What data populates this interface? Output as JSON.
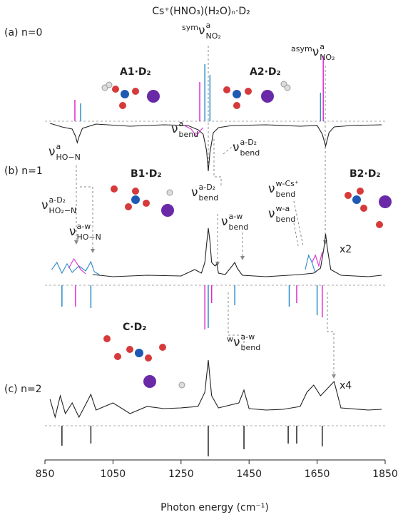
{
  "chart_data": {
    "type": "spectrum",
    "title": "Cs⁺(HNO₃)(H₂O)ₙ·D₂",
    "xlabel": "Photon energy (cm⁻¹)",
    "xlim": [
      850,
      1850
    ],
    "xticks": [
      850,
      1050,
      1250,
      1450,
      1650,
      1850
    ],
    "panels": [
      {
        "label": "(a) n=0",
        "molecules": [
          {
            "name": "A1·D₂",
            "color": "#2e8bc8"
          },
          {
            "name": "A2·D₂",
            "color": "#e02ad0"
          }
        ],
        "traces": [
          {
            "color": "#222222",
            "x": [
              865,
              900,
              930,
              940,
              945,
              950,
              960,
              1000,
              1100,
              1200,
              1270,
              1300,
              1315,
              1325,
              1330,
              1335,
              1345,
              1360,
              1400,
              1500,
              1600,
              1650,
              1665,
              1675,
              1685,
              1700,
              1750,
              1840
            ],
            "values": [
              0.3,
              -0.2,
              -0.5,
              -1.5,
              -2.4,
              -1.6,
              -0.4,
              0.2,
              -0.1,
              0.1,
              0,
              -0.6,
              -1.2,
              -3.5,
              -6.4,
              -3.8,
              -1.0,
              -0.3,
              0,
              0.1,
              -0.1,
              0,
              -1.2,
              -2.9,
              -1.0,
              -0.2,
              0,
              0.1
            ]
          },
          {
            "color": "#e02ad0",
            "x": [
              1260,
              1280,
              1295,
              1305,
              1315
            ],
            "values": [
              0,
              -0.5,
              -1.5,
              -0.8,
              -0.3
            ]
          }
        ],
        "sticks": [
          {
            "color": "#e02ad0",
            "x": [
              938,
              1305,
              1668
            ],
            "values": [
              3.0,
              5.5,
              9.2
            ]
          },
          {
            "color": "#2e8bc8",
            "x": [
              955,
              1320,
              1335,
              1660
            ],
            "values": [
              2.5,
              8.0,
              6.5,
              4.0
            ]
          }
        ],
        "annotations": [
          {
            "pre": "sym",
            "base": "ν",
            "sup": "a",
            "sub": "NO₂"
          },
          {
            "pre": "asym",
            "base": "ν",
            "sup": "a",
            "sub": "NO₂"
          },
          {
            "base": "ν",
            "sup": "a",
            "sub": "HO−N"
          },
          {
            "base": "ν",
            "sup": "a",
            "sub": "bend"
          },
          {
            "base": "ν",
            "sup": "a-D₂",
            "sub": "bend"
          }
        ]
      },
      {
        "label": "(b) n=1",
        "molecules": [
          {
            "name": "B1·D₂",
            "color": "#2e8bc8"
          },
          {
            "name": "B2·D₂",
            "color": "#e02ad0"
          }
        ],
        "traces": [
          {
            "color": "#222222",
            "x": [
              990,
              1050,
              1150,
              1250,
              1290,
              1310,
              1320,
              1325,
              1330,
              1335,
              1340,
              1350,
              1355,
              1360,
              1380,
              1400,
              1408,
              1415,
              1430,
              1500,
              1600,
              1640,
              1660,
              1670,
              1675,
              1680,
              1690,
              1720,
              1800,
              1840
            ],
            "values": [
              0.3,
              0,
              0.2,
              0.1,
              1.0,
              0.5,
              2.0,
              4.5,
              6.8,
              5.0,
              2.0,
              1.5,
              1.8,
              0.5,
              0.3,
              1.5,
              2.0,
              1.2,
              0.2,
              0,
              0.3,
              0.5,
              1.2,
              4.0,
              6.0,
              4.0,
              1.0,
              0.2,
              0,
              0.2
            ]
          },
          {
            "color": "#2e8bc8",
            "x": [
              870,
              885,
              900,
              915,
              930,
              950,
              970,
              985,
              995,
              1010
            ],
            "values": [
              1.0,
              2.0,
              0.5,
              1.8,
              0.6,
              1.5,
              0.8,
              2.1,
              0.7,
              0.3
            ]
          },
          {
            "color": "#e02ad0",
            "x": [
              920,
              935,
              945,
              955,
              970
            ],
            "values": [
              1.2,
              2.5,
              1.8,
              1.0,
              0.4
            ]
          },
          {
            "color": "#2e8bc8",
            "x": [
              1615,
              1625,
              1635,
              1645
            ],
            "values": [
              1.0,
              3.0,
              2.0,
              0.5
            ]
          },
          {
            "color": "#e02ad0",
            "x": [
              1635,
              1645,
              1655,
              1665
            ],
            "values": [
              2.0,
              3.0,
              1.5,
              3.5
            ]
          }
        ],
        "sticks": [
          {
            "color": "#2e8bc8",
            "x": [
              900,
              985,
              1330,
              1408,
              1568,
              1650
            ],
            "values": [
              -3.0,
              -3.2,
              -6.0,
              -2.8,
              -3.0,
              -4.2
            ]
          },
          {
            "color": "#e02ad0",
            "x": [
              940,
              1320,
              1340,
              1590,
              1665
            ],
            "values": [
              -3.0,
              -6.2,
              -2.5,
              -2.5,
              -4.5
            ]
          }
        ],
        "annotations": [
          {
            "base": "ν",
            "sup": "a-D₂",
            "sub": "HO₂−N"
          },
          {
            "base": "ν",
            "sup": "a-w",
            "sub": "HO−N"
          },
          {
            "base": "ν",
            "sup": "a-D₂",
            "sub": "bend"
          },
          {
            "base": "ν",
            "sup": "a-w",
            "sub": "bend"
          },
          {
            "base": "ν",
            "sup": "w-Cs⁺",
            "sub": "bend"
          },
          {
            "base": "ν",
            "sup": "w-a",
            "sub": "bend"
          },
          {
            "text": "x2"
          }
        ]
      },
      {
        "label": "(c) n=2",
        "molecules": [
          {
            "name": "C·D₂",
            "color": "#222222"
          }
        ],
        "traces": [
          {
            "color": "#222222",
            "x": [
              865,
              880,
              895,
              910,
              930,
              950,
              970,
              985,
              1000,
              1050,
              1100,
              1150,
              1200,
              1250,
              1300,
              1320,
              1330,
              1340,
              1360,
              1420,
              1435,
              1450,
              1500,
              1550,
              1600,
              1620,
              1640,
              1660,
              1680,
              1700,
              1720,
              1800,
              1840
            ],
            "values": [
              1.5,
              -1.0,
              2.0,
              -0.5,
              1.0,
              -1.0,
              0.8,
              2.2,
              0,
              1.0,
              -0.5,
              0.5,
              0.2,
              0.3,
              0.5,
              2.5,
              7.0,
              2.0,
              0.3,
              1.0,
              2.8,
              0.2,
              0,
              0.1,
              0.5,
              2.5,
              3.5,
              2.0,
              3.0,
              4.0,
              0.3,
              0,
              0.1
            ]
          }
        ],
        "sticks": [
          {
            "color": "#222222",
            "x": [
              900,
              985,
              1330,
              1435,
              1565,
              1590,
              1665
            ],
            "values": [
              -2.8,
              -2.5,
              -4.3,
              -3.3,
              -2.5,
              -2.5,
              -2.9
            ]
          }
        ],
        "annotations": [
          {
            "pre": "w",
            "base": "ν",
            "sup": "a-w",
            "sub": "bend"
          },
          {
            "text": "x4"
          }
        ]
      }
    ]
  }
}
